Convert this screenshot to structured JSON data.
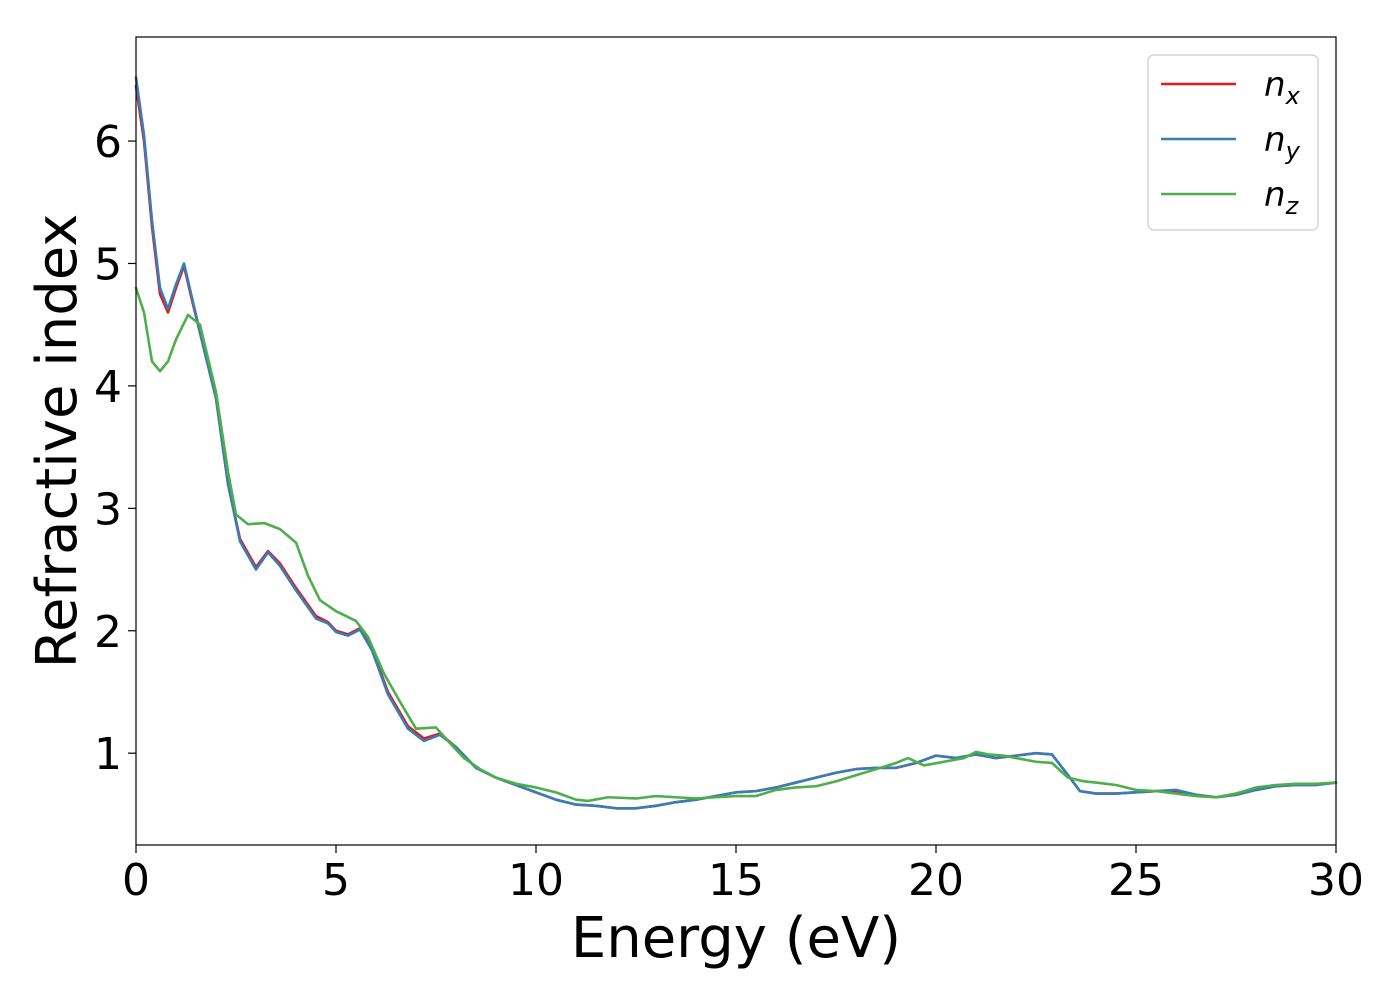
{
  "chart_data": {
    "type": "line",
    "title": "",
    "xlabel": "Energy (eV)",
    "ylabel": "Refractive index",
    "xlim": [
      0,
      30
    ],
    "ylim": [
      0.25,
      6.85
    ],
    "xticks": [
      0,
      5,
      10,
      15,
      20,
      25,
      30
    ],
    "yticks": [
      1,
      2,
      3,
      4,
      5,
      6
    ],
    "grid": false,
    "legend_position": "top-right",
    "series": [
      {
        "name": "n",
        "subscript": "x",
        "color": "#e41a1c",
        "points": [
          [
            0,
            6.45
          ],
          [
            0.2,
            6.0
          ],
          [
            0.4,
            5.3
          ],
          [
            0.6,
            4.75
          ],
          [
            0.8,
            4.6
          ],
          [
            1.0,
            4.8
          ],
          [
            1.2,
            4.98
          ],
          [
            1.4,
            4.7
          ],
          [
            1.7,
            4.3
          ],
          [
            2.0,
            3.9
          ],
          [
            2.3,
            3.2
          ],
          [
            2.6,
            2.75
          ],
          [
            3.0,
            2.52
          ],
          [
            3.3,
            2.65
          ],
          [
            3.6,
            2.55
          ],
          [
            4.0,
            2.35
          ],
          [
            4.5,
            2.12
          ],
          [
            4.8,
            2.07
          ],
          [
            5.0,
            2.0
          ],
          [
            5.3,
            1.97
          ],
          [
            5.6,
            2.02
          ],
          [
            5.9,
            1.85
          ],
          [
            6.3,
            1.5
          ],
          [
            6.8,
            1.22
          ],
          [
            7.2,
            1.12
          ],
          [
            7.6,
            1.16
          ],
          [
            8.0,
            1.05
          ],
          [
            8.5,
            0.88
          ],
          [
            9.0,
            0.8
          ],
          [
            9.5,
            0.74
          ],
          [
            10.0,
            0.68
          ],
          [
            10.5,
            0.62
          ],
          [
            11.0,
            0.58
          ],
          [
            11.5,
            0.57
          ],
          [
            12.0,
            0.55
          ],
          [
            12.5,
            0.55
          ],
          [
            13.0,
            0.57
          ],
          [
            13.5,
            0.6
          ],
          [
            14.0,
            0.62
          ],
          [
            14.5,
            0.65
          ],
          [
            15.0,
            0.68
          ],
          [
            15.5,
            0.69
          ],
          [
            16.0,
            0.72
          ],
          [
            16.5,
            0.76
          ],
          [
            17.0,
            0.8
          ],
          [
            17.5,
            0.84
          ],
          [
            18.0,
            0.87
          ],
          [
            18.5,
            0.88
          ],
          [
            19.0,
            0.88
          ],
          [
            19.5,
            0.92
          ],
          [
            20.0,
            0.98
          ],
          [
            20.5,
            0.96
          ],
          [
            21.0,
            0.99
          ],
          [
            21.5,
            0.96
          ],
          [
            22.0,
            0.98
          ],
          [
            22.5,
            1.0
          ],
          [
            22.9,
            0.99
          ],
          [
            23.3,
            0.82
          ],
          [
            23.6,
            0.69
          ],
          [
            24.0,
            0.67
          ],
          [
            24.5,
            0.67
          ],
          [
            25.0,
            0.68
          ],
          [
            25.5,
            0.69
          ],
          [
            26.0,
            0.69
          ],
          [
            26.5,
            0.66
          ],
          [
            27.0,
            0.64
          ],
          [
            27.5,
            0.66
          ],
          [
            28.0,
            0.7
          ],
          [
            28.5,
            0.73
          ],
          [
            29.0,
            0.74
          ],
          [
            29.5,
            0.74
          ],
          [
            30.0,
            0.76
          ]
        ]
      },
      {
        "name": "n",
        "subscript": "y",
        "color": "#377eb8",
        "points": [
          [
            0,
            6.52
          ],
          [
            0.2,
            6.05
          ],
          [
            0.4,
            5.35
          ],
          [
            0.6,
            4.8
          ],
          [
            0.8,
            4.63
          ],
          [
            1.0,
            4.83
          ],
          [
            1.2,
            5.0
          ],
          [
            1.4,
            4.72
          ],
          [
            1.7,
            4.3
          ],
          [
            2.0,
            3.9
          ],
          [
            2.3,
            3.2
          ],
          [
            2.6,
            2.73
          ],
          [
            3.0,
            2.5
          ],
          [
            3.3,
            2.64
          ],
          [
            3.6,
            2.53
          ],
          [
            4.0,
            2.33
          ],
          [
            4.5,
            2.1
          ],
          [
            4.8,
            2.06
          ],
          [
            5.0,
            1.99
          ],
          [
            5.3,
            1.96
          ],
          [
            5.6,
            2.01
          ],
          [
            5.9,
            1.84
          ],
          [
            6.3,
            1.48
          ],
          [
            6.8,
            1.2
          ],
          [
            7.2,
            1.1
          ],
          [
            7.6,
            1.15
          ],
          [
            8.0,
            1.05
          ],
          [
            8.5,
            0.88
          ],
          [
            9.0,
            0.8
          ],
          [
            9.5,
            0.74
          ],
          [
            10.0,
            0.68
          ],
          [
            10.5,
            0.62
          ],
          [
            11.0,
            0.58
          ],
          [
            11.5,
            0.57
          ],
          [
            12.0,
            0.55
          ],
          [
            12.5,
            0.55
          ],
          [
            13.0,
            0.57
          ],
          [
            13.5,
            0.6
          ],
          [
            14.0,
            0.62
          ],
          [
            14.5,
            0.65
          ],
          [
            15.0,
            0.68
          ],
          [
            15.5,
            0.69
          ],
          [
            16.0,
            0.72
          ],
          [
            16.5,
            0.76
          ],
          [
            17.0,
            0.8
          ],
          [
            17.5,
            0.84
          ],
          [
            18.0,
            0.87
          ],
          [
            18.5,
            0.88
          ],
          [
            19.0,
            0.88
          ],
          [
            19.5,
            0.92
          ],
          [
            20.0,
            0.98
          ],
          [
            20.5,
            0.96
          ],
          [
            21.0,
            0.99
          ],
          [
            21.5,
            0.96
          ],
          [
            22.0,
            0.98
          ],
          [
            22.5,
            1.0
          ],
          [
            22.9,
            0.99
          ],
          [
            23.3,
            0.82
          ],
          [
            23.6,
            0.69
          ],
          [
            24.0,
            0.67
          ],
          [
            24.5,
            0.67
          ],
          [
            25.0,
            0.68
          ],
          [
            25.5,
            0.69
          ],
          [
            26.0,
            0.7
          ],
          [
            26.5,
            0.66
          ],
          [
            27.0,
            0.64
          ],
          [
            27.5,
            0.66
          ],
          [
            28.0,
            0.7
          ],
          [
            28.5,
            0.73
          ],
          [
            29.0,
            0.74
          ],
          [
            29.5,
            0.74
          ],
          [
            30.0,
            0.76
          ]
        ]
      },
      {
        "name": "n",
        "subscript": "z",
        "color": "#4daf4a",
        "points": [
          [
            0,
            4.8
          ],
          [
            0.2,
            4.6
          ],
          [
            0.4,
            4.2
          ],
          [
            0.6,
            4.12
          ],
          [
            0.8,
            4.2
          ],
          [
            1.0,
            4.38
          ],
          [
            1.3,
            4.58
          ],
          [
            1.6,
            4.5
          ],
          [
            2.0,
            3.95
          ],
          [
            2.3,
            3.3
          ],
          [
            2.5,
            2.95
          ],
          [
            2.8,
            2.87
          ],
          [
            3.2,
            2.88
          ],
          [
            3.6,
            2.83
          ],
          [
            4.0,
            2.72
          ],
          [
            4.3,
            2.45
          ],
          [
            4.6,
            2.25
          ],
          [
            5.0,
            2.16
          ],
          [
            5.5,
            2.08
          ],
          [
            5.8,
            1.95
          ],
          [
            6.2,
            1.65
          ],
          [
            6.6,
            1.42
          ],
          [
            7.0,
            1.2
          ],
          [
            7.5,
            1.21
          ],
          [
            7.8,
            1.1
          ],
          [
            8.2,
            0.96
          ],
          [
            8.6,
            0.87
          ],
          [
            9.0,
            0.8
          ],
          [
            9.5,
            0.75
          ],
          [
            10.0,
            0.72
          ],
          [
            10.5,
            0.68
          ],
          [
            11.0,
            0.62
          ],
          [
            11.3,
            0.61
          ],
          [
            11.8,
            0.64
          ],
          [
            12.5,
            0.63
          ],
          [
            13.0,
            0.65
          ],
          [
            13.5,
            0.64
          ],
          [
            14.0,
            0.63
          ],
          [
            14.5,
            0.64
          ],
          [
            15.0,
            0.65
          ],
          [
            15.5,
            0.65
          ],
          [
            16.0,
            0.7
          ],
          [
            16.5,
            0.72
          ],
          [
            17.0,
            0.73
          ],
          [
            17.5,
            0.77
          ],
          [
            18.0,
            0.82
          ],
          [
            18.5,
            0.87
          ],
          [
            19.0,
            0.92
          ],
          [
            19.3,
            0.96
          ],
          [
            19.7,
            0.9
          ],
          [
            20.2,
            0.93
          ],
          [
            20.7,
            0.96
          ],
          [
            21.0,
            1.01
          ],
          [
            21.3,
            0.99
          ],
          [
            21.7,
            0.98
          ],
          [
            22.0,
            0.96
          ],
          [
            22.5,
            0.93
          ],
          [
            22.9,
            0.92
          ],
          [
            23.3,
            0.8
          ],
          [
            23.7,
            0.77
          ],
          [
            24.0,
            0.76
          ],
          [
            24.5,
            0.74
          ],
          [
            25.0,
            0.7
          ],
          [
            25.5,
            0.69
          ],
          [
            26.0,
            0.67
          ],
          [
            26.5,
            0.65
          ],
          [
            27.0,
            0.64
          ],
          [
            27.5,
            0.67
          ],
          [
            28.0,
            0.72
          ],
          [
            28.5,
            0.74
          ],
          [
            29.0,
            0.75
          ],
          [
            29.5,
            0.75
          ],
          [
            30.0,
            0.76
          ]
        ]
      }
    ]
  }
}
